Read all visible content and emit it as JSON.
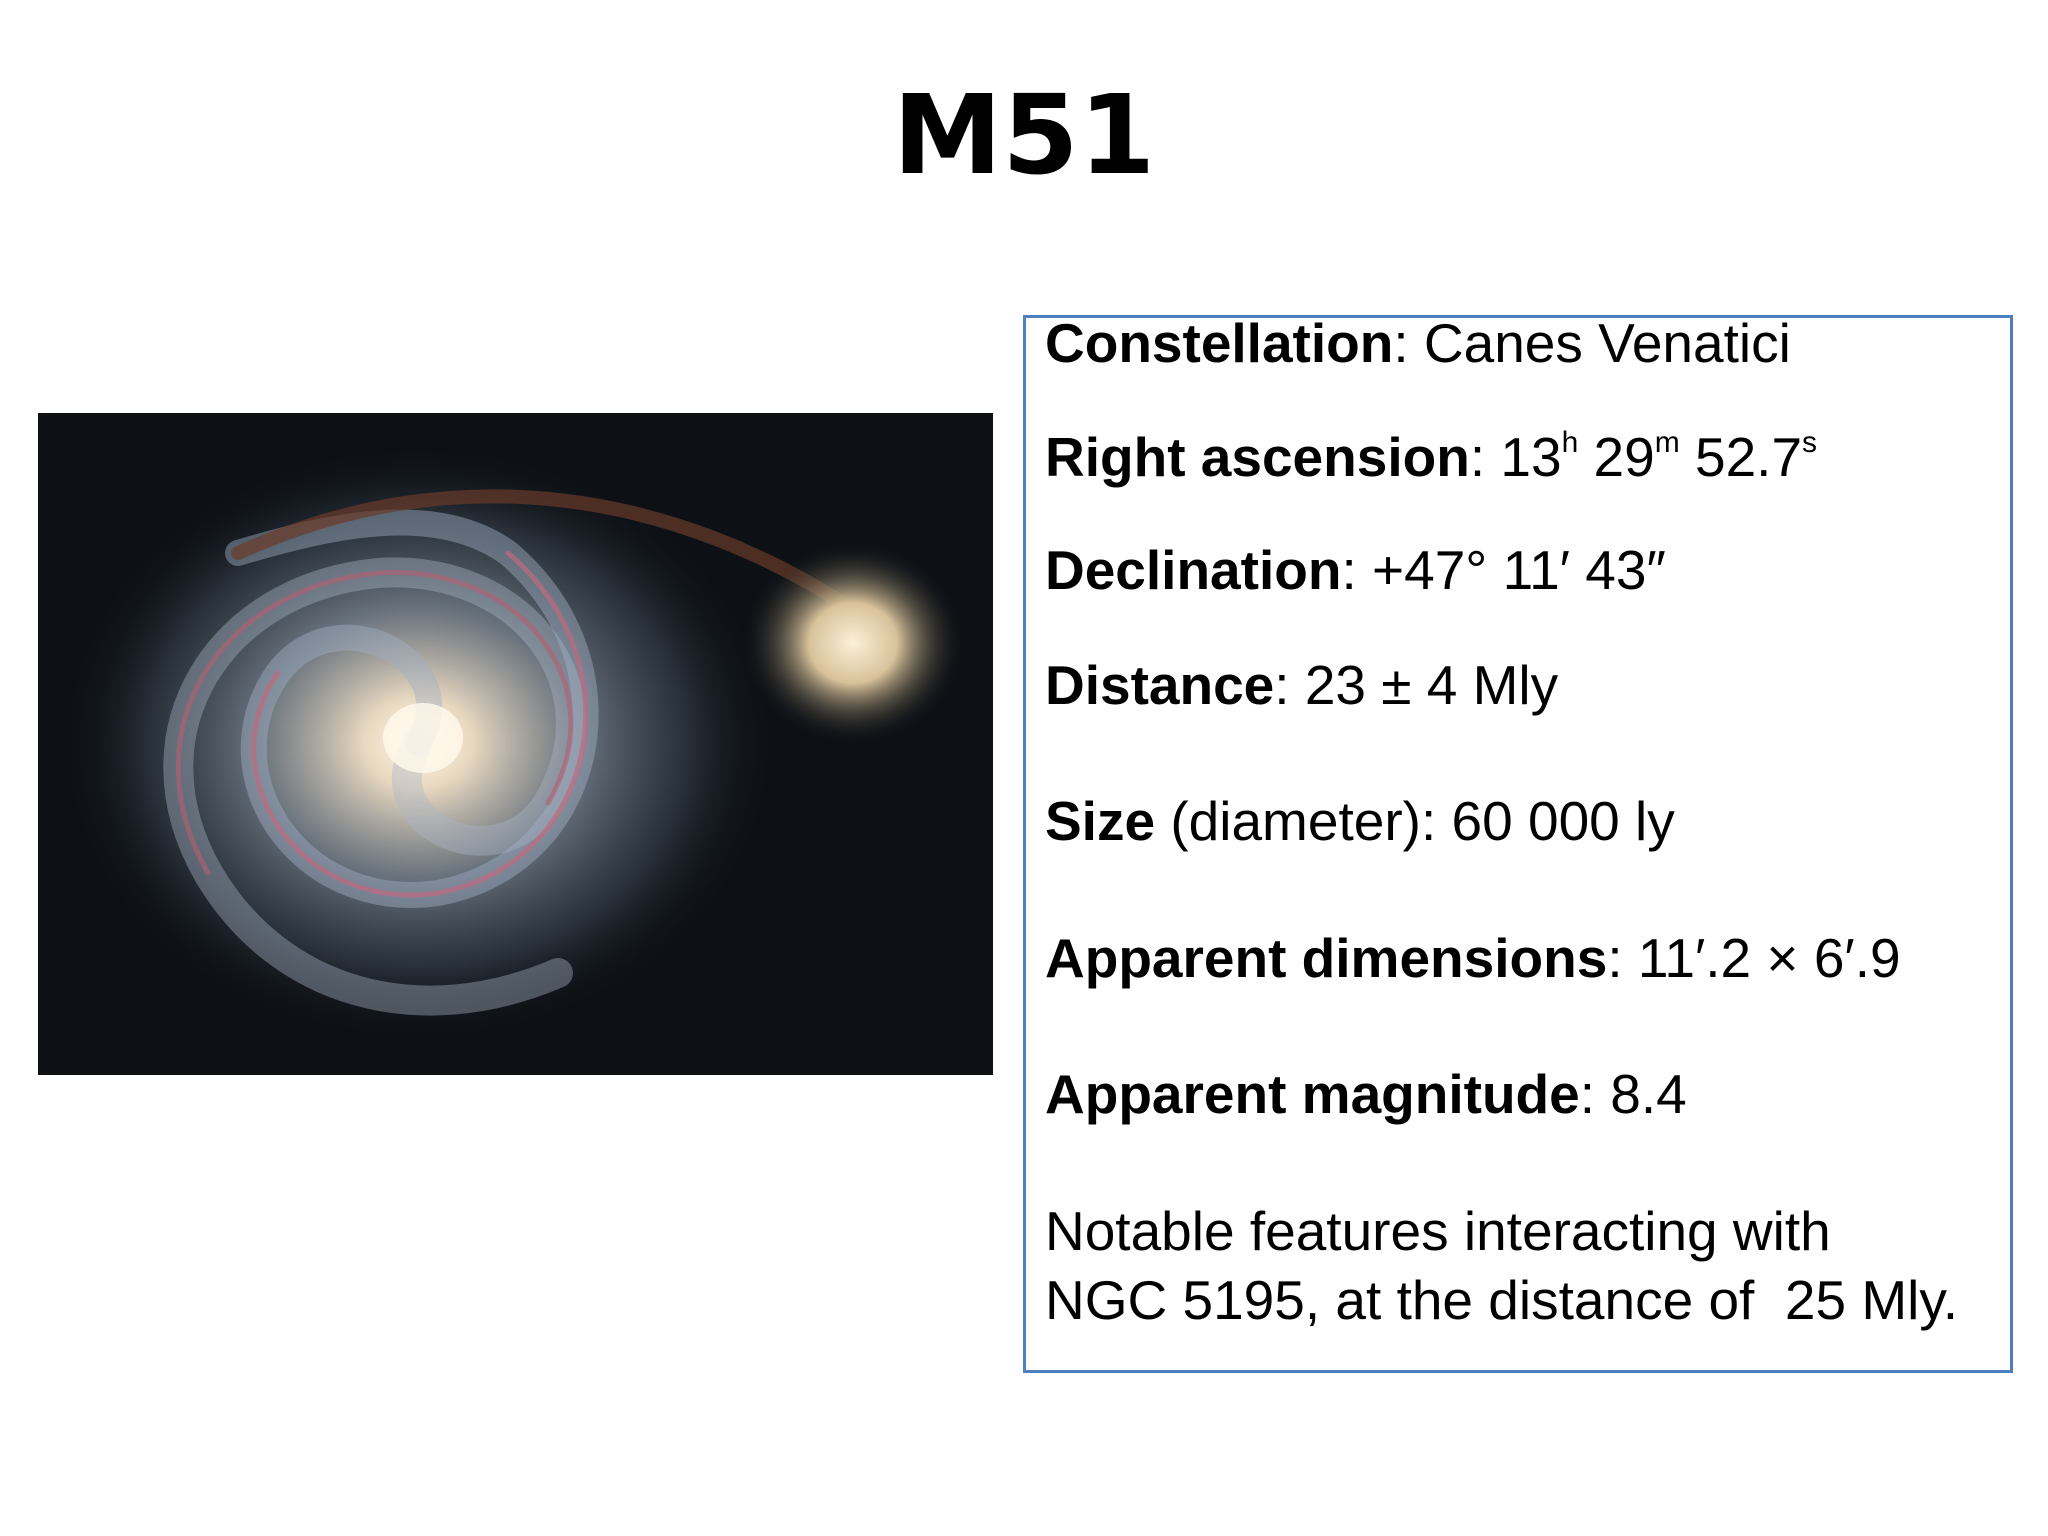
{
  "title": "M51",
  "properties": [
    {
      "label": "Constellation",
      "value": ": Canes Venatici"
    },
    {
      "label": "Right ascension",
      "segments": [
        ": 13",
        "h",
        " 29",
        "m",
        " 52.7",
        "s"
      ]
    },
    {
      "label": "Declination",
      "value": ": +47° 11′ 43″"
    },
    {
      "label": "Distance",
      "value": ": 23 ± 4 Mly"
    },
    {
      "label": "Size",
      "value": " (diameter): 60 000 ly"
    },
    {
      "label": "Apparent dimensions",
      "value": ": 11′.2 × 6′.9"
    },
    {
      "label": "Apparent magnitude",
      "value": ": 8.4"
    }
  ],
  "notes": [
    "Notable features interacting with",
    "NGC 5195, at the distance of  25 Mly."
  ]
}
